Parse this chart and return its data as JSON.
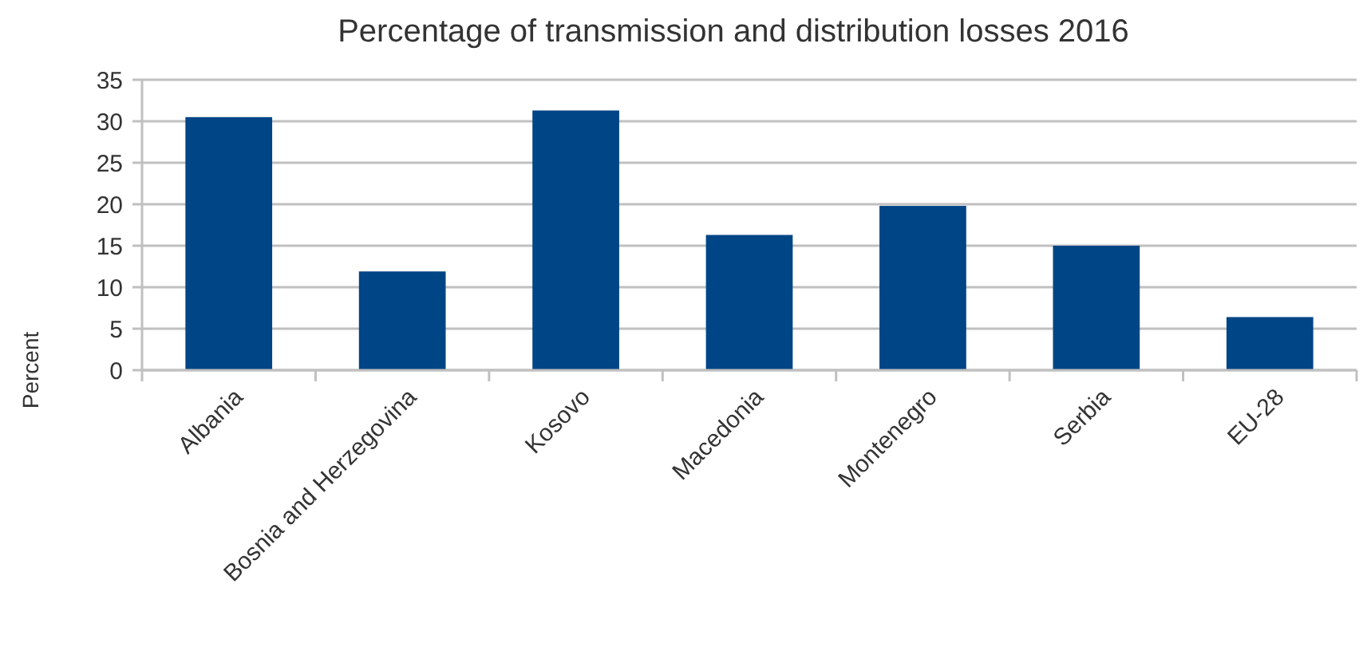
{
  "chart_data": {
    "type": "bar",
    "title": "Percentage of transmission and distribution losses 2016",
    "ylabel": "Percent",
    "categories": [
      "Albania",
      "Bosnia and Herzegovina",
      "Kosovo",
      "Macedonia",
      "Montenegro",
      "Serbia",
      "EU-28"
    ],
    "values": [
      30.5,
      11.9,
      31.3,
      16.3,
      19.8,
      15.0,
      6.4
    ],
    "color": "#004586",
    "ylim": [
      0,
      35
    ],
    "yticks": [
      0,
      5,
      10,
      15,
      20,
      25,
      30,
      35
    ],
    "grid": "y"
  }
}
